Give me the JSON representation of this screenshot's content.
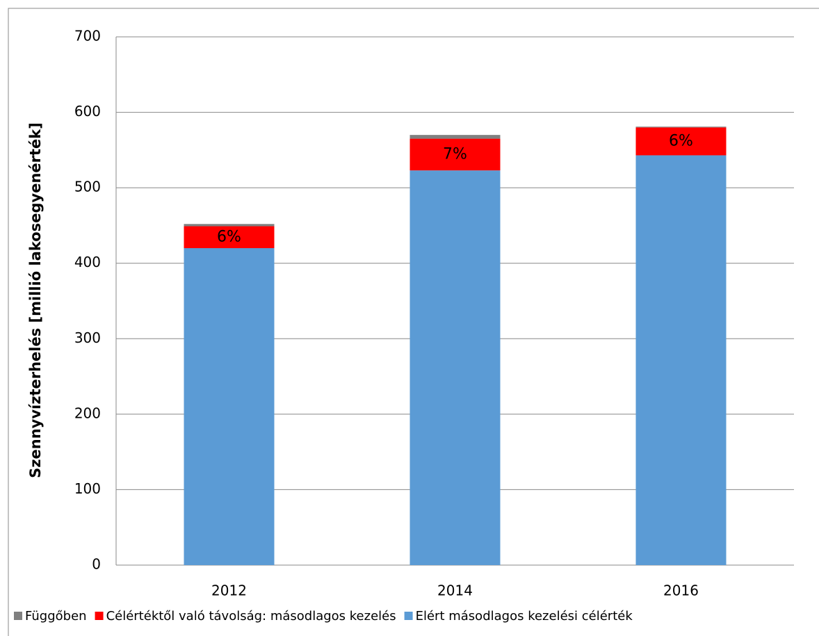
{
  "chart_data": {
    "type": "stacked_bar",
    "y_label": "Szennyvízterhelés [millió lakosegyenérték]",
    "categories": [
      "2012",
      "2014",
      "2016"
    ],
    "series": [
      {
        "name": "Függőben",
        "color": "#808080",
        "values": [
          3,
          5,
          1
        ]
      },
      {
        "name": "Célértéktől való távolság: másodlagos kezelés",
        "color": "#ff0000",
        "values": [
          29,
          42,
          37
        ]
      },
      {
        "name": "Elért másodlagos kezelési célérték",
        "color": "#5b9bd5",
        "values": [
          420,
          523,
          543
        ]
      }
    ],
    "annotations": [
      "6%",
      "7%",
      "6%"
    ],
    "ylim": [
      0,
      700
    ],
    "yticks": [
      0,
      100,
      200,
      300,
      400,
      500,
      600,
      700
    ],
    "grid": true,
    "legend": "bottom"
  }
}
